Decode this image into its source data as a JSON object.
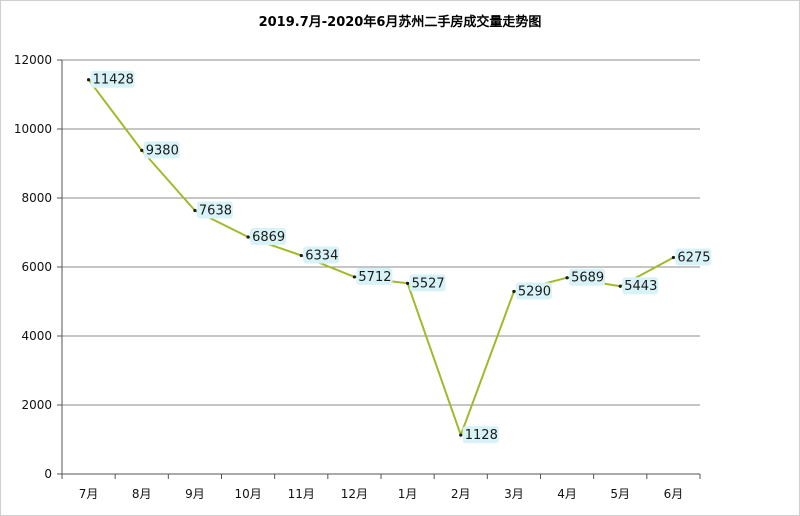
{
  "chart_data": {
    "type": "line",
    "title": "2019.7月-2020年6月苏州二手房成交量走势图",
    "xlabel": "",
    "ylabel": "",
    "categories": [
      "7月",
      "8月",
      "9月",
      "10月",
      "11月",
      "12月",
      "1月",
      "2月",
      "3月",
      "4月",
      "5月",
      "6月"
    ],
    "series": [
      {
        "values": [
          11428,
          9380,
          7638,
          6869,
          6334,
          5712,
          5527,
          1128,
          5290,
          5689,
          5443,
          6275
        ]
      }
    ],
    "ylim": [
      0,
      12000
    ],
    "yticks": [
      0,
      2000,
      4000,
      6000,
      8000,
      10000,
      12000
    ],
    "grid": true,
    "legend": "none",
    "colors": {
      "line": "#9fba2a",
      "label_bg": "#d8f3f8",
      "grid": "#8c8c8c",
      "axis": "#555555"
    }
  }
}
